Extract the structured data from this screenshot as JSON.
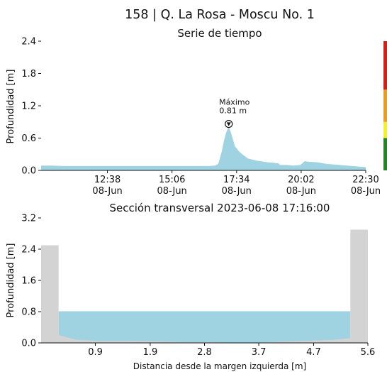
{
  "title": "158 | Q. La Rosa - Moscu No. 1",
  "colors": {
    "water": "#9fd3e2",
    "ground": "#d3d3d3",
    "level_green": "#1a8a1a",
    "level_yellow": "#f6f60c",
    "level_orange": "#f39c12",
    "level_red": "#e8170b"
  },
  "chart_data": [
    {
      "type": "area",
      "title": "Serie de tiempo",
      "ylabel": "Profundidad [m]",
      "xlabel": "",
      "ylim": [
        0,
        2.4
      ],
      "yticks": [
        "0.0",
        "0.6",
        "1.2",
        "1.8",
        "2.4"
      ],
      "xticks": [
        {
          "line1": "12:38",
          "line2": "08-Jun",
          "t": "12:38"
        },
        {
          "line1": "15:06",
          "line2": "08-Jun",
          "t": "15:06"
        },
        {
          "line1": "17:34",
          "line2": "08-Jun",
          "t": "17:34"
        },
        {
          "line1": "20:02",
          "line2": "08-Jun",
          "t": "20:02"
        },
        {
          "line1": "22:30",
          "line2": "08-Jun",
          "t": "22:30"
        }
      ],
      "xrange": [
        "10:06",
        "22:30"
      ],
      "series": [
        {
          "x": [
            "10:06",
            "10:30",
            "11:00",
            "11:30",
            "12:00",
            "12:30",
            "13:00",
            "13:30",
            "14:00",
            "14:30",
            "15:00",
            "15:30",
            "16:00",
            "16:30",
            "16:45",
            "16:52",
            "17:00",
            "17:05",
            "17:10",
            "17:16",
            "17:22",
            "17:30",
            "17:40",
            "17:50",
            "18:00",
            "18:20",
            "18:45",
            "19:00",
            "19:10",
            "19:14",
            "19:30",
            "19:45",
            "20:00",
            "20:10",
            "20:20",
            "20:40",
            "21:00",
            "21:30",
            "22:00",
            "22:30"
          ],
          "values": [
            0.09,
            0.09,
            0.08,
            0.08,
            0.08,
            0.08,
            0.08,
            0.08,
            0.08,
            0.08,
            0.08,
            0.08,
            0.08,
            0.08,
            0.09,
            0.12,
            0.35,
            0.55,
            0.7,
            0.81,
            0.68,
            0.45,
            0.35,
            0.28,
            0.22,
            0.18,
            0.15,
            0.14,
            0.13,
            0.1,
            0.1,
            0.09,
            0.1,
            0.17,
            0.16,
            0.15,
            0.12,
            0.1,
            0.08,
            0.06
          ]
        }
      ],
      "annotation": {
        "label": "Máximo",
        "value_label": "0.81 m",
        "t": "17:16",
        "y": 0.81
      },
      "level_bar": [
        {
          "from": 0.0,
          "to": 0.6,
          "color": "#1a8a1a"
        },
        {
          "from": 0.6,
          "to": 0.9,
          "color": "#f6f60c"
        },
        {
          "from": 0.9,
          "to": 1.5,
          "color": "#f39c12"
        },
        {
          "from": 1.5,
          "to": 2.4,
          "color": "#e8170b"
        }
      ]
    },
    {
      "type": "area",
      "title": "Sección transversal 2023-06-08 17:16:00",
      "xlabel": "Distancia desde la margen izquierda [m]",
      "ylabel": "Profundidad [m]",
      "xlim": [
        0,
        5.6
      ],
      "ylim": [
        0,
        3.2
      ],
      "xticks": [
        "0.9",
        "1.9",
        "2.8",
        "3.7",
        "4.7",
        "5.6"
      ],
      "xtick_values": [
        0.93,
        1.87,
        2.8,
        3.73,
        4.67,
        5.6
      ],
      "yticks": [
        "0.0",
        "0.8",
        "1.6",
        "2.4",
        "3.2"
      ],
      "water_level": 0.81,
      "water_extent": [
        0.3,
        5.3
      ],
      "banks": [
        {
          "x_from": 0.0,
          "x_to": 0.3,
          "height": 2.5
        },
        {
          "x_from": 5.3,
          "x_to": 5.6,
          "height": 2.9
        }
      ],
      "bed_profile": {
        "x": [
          0.3,
          0.6,
          1.0,
          1.5,
          2.0,
          2.5,
          3.0,
          3.3,
          3.6,
          4.0,
          4.5,
          5.0,
          5.3
        ],
        "y": [
          0.2,
          0.08,
          0.05,
          0.05,
          0.04,
          0.02,
          0.02,
          0.0,
          0.0,
          0.03,
          0.05,
          0.08,
          0.12
        ]
      }
    }
  ]
}
